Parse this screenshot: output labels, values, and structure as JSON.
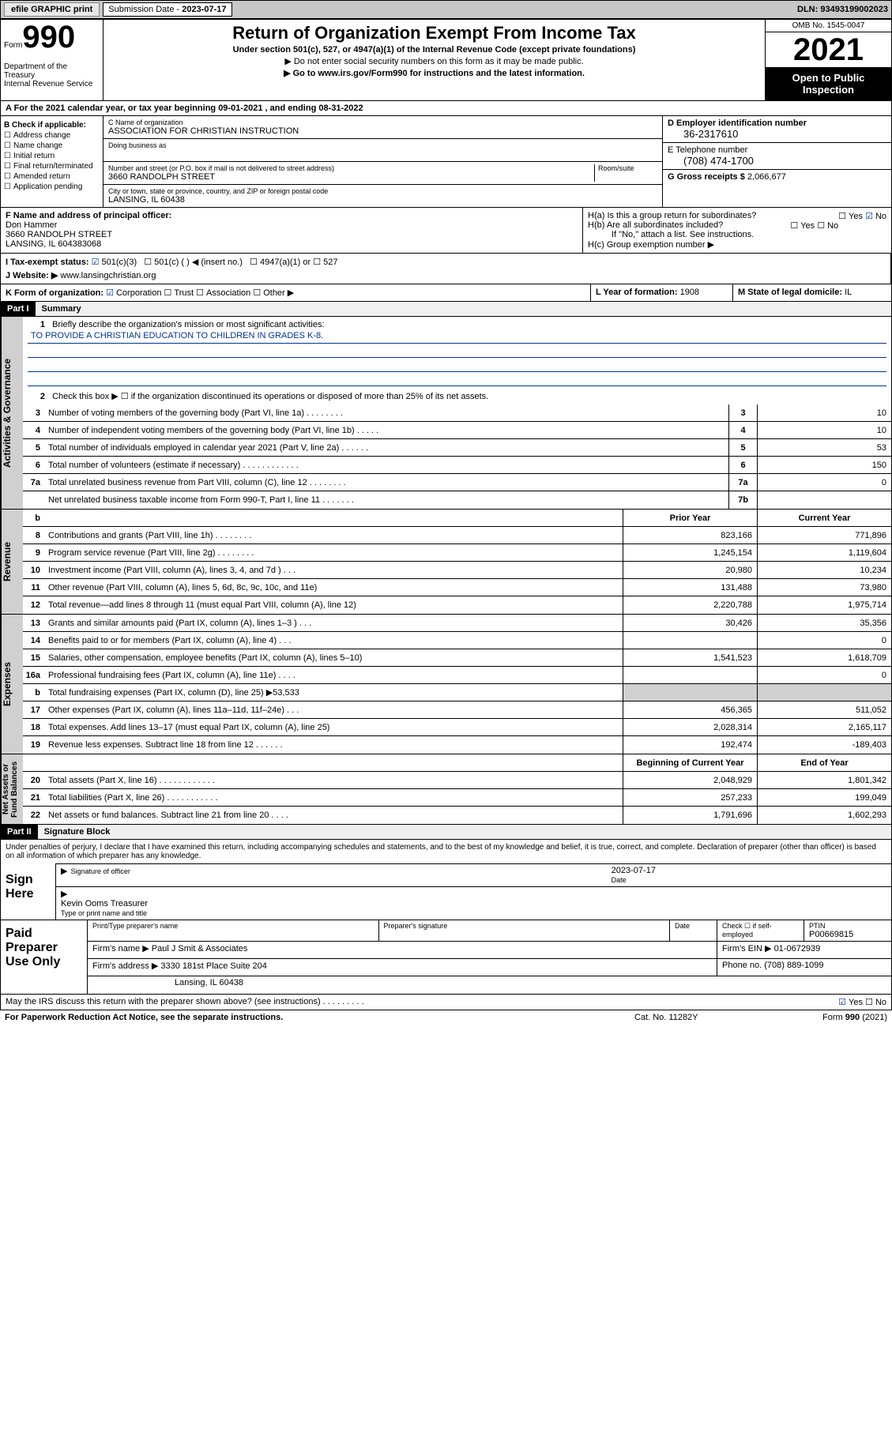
{
  "topbar": {
    "efile": "efile GRAPHIC print",
    "sub_lbl": "Submission Date - ",
    "sub_val": "2023-07-17",
    "dln": "DLN: 93493199002023"
  },
  "hdr": {
    "form": "Form",
    "num": "990",
    "dept": "Department of the Treasury\nInternal Revenue Service",
    "title": "Return of Organization Exempt From Income Tax",
    "s1": "Under section 501(c), 527, or 4947(a)(1) of the Internal Revenue Code (except private foundations)",
    "s2": "▶ Do not enter social security numbers on this form as it may be made public.",
    "s3": "▶ Go to www.irs.gov/Form990 for instructions and the latest information.",
    "omb": "OMB No. 1545-0047",
    "yr": "2021",
    "open": "Open to Public Inspection"
  },
  "lineA": "A For the 2021 calendar year, or tax year beginning 09-01-2021   , and ending 08-31-2022",
  "B": {
    "hdr": "B Check if applicable:",
    "items": [
      "Address change",
      "Name change",
      "Initial return",
      "Final return/terminated",
      "Amended return",
      "Application pending"
    ]
  },
  "C": {
    "lbl": "C Name of organization",
    "val": "ASSOCIATION FOR CHRISTIAN INSTRUCTION",
    "dba": "Doing business as",
    "addr_lbl": "Number and street (or P.O. box if mail is not delivered to street address)",
    "room": "Room/suite",
    "addr": "3660 RANDOLPH STREET",
    "city_lbl": "City or town, state or province, country, and ZIP or foreign postal code",
    "city": "LANSING, IL  60438"
  },
  "D": {
    "lbl": "D Employer identification number",
    "val": "36-2317610"
  },
  "E": {
    "lbl": "E Telephone number",
    "val": "(708) 474-1700"
  },
  "G": {
    "lbl": "G Gross receipts $",
    "val": "2,066,677"
  },
  "F": {
    "lbl": "F  Name and address of principal officer:",
    "name": "Don Hammer",
    "addr": "3660 RANDOLPH STREET\nLANSING, IL  604383068"
  },
  "H": {
    "a": "H(a)  Is this a group return for subordinates?",
    "b": "H(b)  Are all subordinates included?",
    "bnote": "If \"No,\" attach a list. See instructions.",
    "c": "H(c)  Group exemption number ▶",
    "yes": "Yes",
    "no": "No"
  },
  "I": {
    "lbl": "I    Tax-exempt status:",
    "o1": "501(c)(3)",
    "o2": "501(c) (  ) ◀ (insert no.)",
    "o3": "4947(a)(1) or",
    "o4": "527"
  },
  "J": {
    "lbl": "J   Website: ▶",
    "val": "www.lansingchristian.org"
  },
  "K": {
    "lbl": "K Form of organization:",
    "o1": "Corporation",
    "o2": "Trust",
    "o3": "Association",
    "o4": "Other ▶"
  },
  "L": {
    "lbl": "L Year of formation:",
    "val": "1908"
  },
  "M": {
    "lbl": "M State of legal domicile:",
    "val": "IL"
  },
  "part1": {
    "h": "Part I",
    "t": "Summary"
  },
  "s1": {
    "n": "1",
    "d": "Briefly describe the organization's mission or most significant activities:",
    "v": "TO PROVIDE A CHRISTIAN EDUCATION TO CHILDREN IN GRADES K-8."
  },
  "s2": {
    "n": "2",
    "d": "Check this box ▶ ☐  if the organization discontinued its operations or disposed of more than 25% of its net assets."
  },
  "rows_gov": [
    {
      "n": "3",
      "d": "Number of voting members of the governing body (Part VI, line 1a)   .    .    .    .    .    .    .    .",
      "k": "3",
      "v": "10"
    },
    {
      "n": "4",
      "d": "Number of independent voting members of the governing body (Part VI, line 1b)   .    .    .    .    .",
      "k": "4",
      "v": "10"
    },
    {
      "n": "5",
      "d": "Total number of individuals employed in calendar year 2021 (Part V, line 2a)   .    .    .    .    .    .",
      "k": "5",
      "v": "53"
    },
    {
      "n": "6",
      "d": "Total number of volunteers (estimate if necessary)    .    .    .    .    .    .    .    .    .    .    .    .",
      "k": "6",
      "v": "150"
    },
    {
      "n": "7a",
      "d": "Total unrelated business revenue from Part VIII, column (C), line 12   .    .    .    .    .    .    .    .",
      "k": "7a",
      "v": "0"
    },
    {
      "n": "",
      "d": "Net unrelated business taxable income from Form 990-T, Part I, line 11   .    .    .    .    .    .    .",
      "k": "7b",
      "v": ""
    }
  ],
  "rev_h": {
    "py": "Prior Year",
    "cy": "Current Year"
  },
  "rows_rev": [
    {
      "n": "8",
      "d": "Contributions and grants (Part VIII, line 1h)  .   .   .   .   .   .   .   .",
      "p": "823,166",
      "c": "771,896"
    },
    {
      "n": "9",
      "d": "Program service revenue (Part VIII, line 2g)  .   .   .   .   .   .   .   .",
      "p": "1,245,154",
      "c": "1,119,604"
    },
    {
      "n": "10",
      "d": "Investment income (Part VIII, column (A), lines 3, 4, and 7d )  .   .   .",
      "p": "20,980",
      "c": "10,234"
    },
    {
      "n": "11",
      "d": "Other revenue (Part VIII, column (A), lines 5, 6d, 8c, 9c, 10c, and 11e)",
      "p": "131,488",
      "c": "73,980"
    },
    {
      "n": "12",
      "d": "Total revenue—add lines 8 through 11 (must equal Part VIII, column (A), line 12)",
      "p": "2,220,788",
      "c": "1,975,714"
    }
  ],
  "rows_exp": [
    {
      "n": "13",
      "d": "Grants and similar amounts paid (Part IX, column (A), lines 1–3 )  .   .   .",
      "p": "30,426",
      "c": "35,356"
    },
    {
      "n": "14",
      "d": "Benefits paid to or for members (Part IX, column (A), line 4)  .   .   .",
      "p": "",
      "c": "0"
    },
    {
      "n": "15",
      "d": "Salaries, other compensation, employee benefits (Part IX, column (A), lines 5–10)",
      "p": "1,541,523",
      "c": "1,618,709"
    },
    {
      "n": "16a",
      "d": "Professional fundraising fees (Part IX, column (A), line 11e)  .   .   .   .",
      "p": "",
      "c": "0"
    },
    {
      "n": "b",
      "d": "Total fundraising expenses (Part IX, column (D), line 25) ▶53,533",
      "p": "",
      "c": "",
      "gray": true
    },
    {
      "n": "17",
      "d": "Other expenses (Part IX, column (A), lines 11a–11d, 11f–24e)  .   .   .",
      "p": "456,365",
      "c": "511,052"
    },
    {
      "n": "18",
      "d": "Total expenses. Add lines 13–17 (must equal Part IX, column (A), line 25)",
      "p": "2,028,314",
      "c": "2,165,117"
    },
    {
      "n": "19",
      "d": "Revenue less expenses. Subtract line 18 from line 12  .   .   .   .   .   .",
      "p": "192,474",
      "c": "-189,403"
    }
  ],
  "na_h": {
    "b": "Beginning of Current Year",
    "e": "End of Year"
  },
  "rows_na": [
    {
      "n": "20",
      "d": "Total assets (Part X, line 16)  .   .   .   .   .   .   .   .   .   .   .   .",
      "p": "2,048,929",
      "c": "1,801,342"
    },
    {
      "n": "21",
      "d": "Total liabilities (Part X, line 26)  .   .   .   .   .   .   .   .   .   .   .",
      "p": "257,233",
      "c": "199,049"
    },
    {
      "n": "22",
      "d": "Net assets or fund balances. Subtract line 21 from line 20  .   .   .   .",
      "p": "1,791,696",
      "c": "1,602,293"
    }
  ],
  "sides": {
    "gov": "Activities & Governance",
    "rev": "Revenue",
    "exp": "Expenses",
    "na": "Net Assets or\nFund Balances"
  },
  "part2": {
    "h": "Part II",
    "t": "Signature Block"
  },
  "sig": {
    "txt": "Under penalties of perjury, I declare that I have examined this return, including accompanying schedules and statements, and to the best of my knowledge and belief, it is true, correct, and complete. Declaration of preparer (other than officer) is based on all information of which preparer has any knowledge.",
    "here": "Sign Here",
    "off": "Signature of officer",
    "date": "Date",
    "dval": "2023-07-17",
    "name": "Kevin Ooms  Treasurer",
    "name_lbl": "Type or print name and title"
  },
  "paid": {
    "lbl": "Paid Preparer Use Only",
    "h1": "Print/Type preparer's name",
    "h2": "Preparer's signature",
    "h3": "Date",
    "h4": "Check ☐ if self-employed",
    "h5": "PTIN",
    "ptin": "P00669815",
    "firm": "Firm's name   ▶",
    "firm_v": "Paul J Smit & Associates",
    "ein": "Firm's EIN ▶",
    "ein_v": "01-0672939",
    "addr": "Firm's address ▶",
    "addr_v": "3330 181st Place Suite 204",
    "city": "Lansing, IL  60438",
    "ph": "Phone no.",
    "ph_v": "(708) 889-1099"
  },
  "foot": {
    "q": "May the IRS discuss this return with the preparer shown above? (see instructions)   .    .    .    .    .    .    .    .    .",
    "y": "Yes",
    "n": "No"
  },
  "foot2": {
    "l": "For Paperwork Reduction Act Notice, see the separate instructions.",
    "c": "Cat. No. 11282Y",
    "r": "Form 990 (2021)"
  }
}
